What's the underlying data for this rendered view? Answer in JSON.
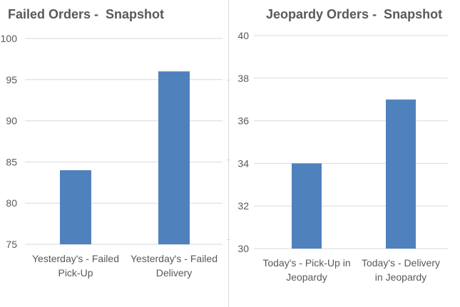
{
  "colors": {
    "bar": "#4F81BD",
    "grid": "#d9d9d9",
    "text": "#595959"
  },
  "chart_data": [
    {
      "type": "bar",
      "title": "Failed Orders -  Snapshot",
      "categories": [
        [
          "Yesterday's - Failed",
          "Pick-Up"
        ],
        [
          "Yesterday's - Failed",
          "Delivery"
        ]
      ],
      "values": [
        84,
        96
      ],
      "ylim": [
        75,
        100
      ],
      "yticks": [
        75,
        80,
        85,
        90,
        95,
        100
      ],
      "grid": true,
      "xlabel": "",
      "ylabel": ""
    },
    {
      "type": "bar",
      "title": "Jeopardy Orders -  Snapshot",
      "categories": [
        [
          "Today's  - Pick-Up in",
          "Jeopardy"
        ],
        [
          "Today's  - Delivery",
          "in Jeopardy"
        ]
      ],
      "values": [
        34,
        37
      ],
      "ylim": [
        30,
        40
      ],
      "yticks": [
        30,
        32,
        34,
        36,
        38,
        40
      ],
      "grid": true,
      "xlabel": "",
      "ylabel": ""
    }
  ]
}
